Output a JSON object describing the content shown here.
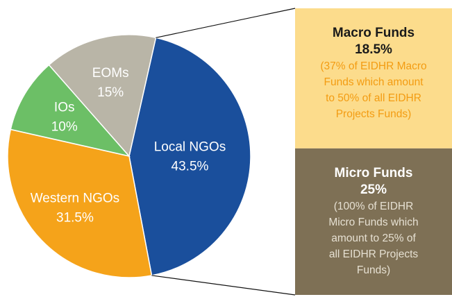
{
  "chart_data": {
    "type": "pie",
    "categories": [
      "Local NGOs",
      "Western NGOs",
      "IOs",
      "EOMs"
    ],
    "values": [
      43.5,
      31.5,
      10,
      15
    ],
    "value_labels": [
      "43.5%",
      "31.5%",
      "10%",
      "15%"
    ],
    "colors": [
      "#1a4f9c",
      "#f5a31a",
      "#6cbf66",
      "#b9b5a7"
    ],
    "label_colors": [
      "#ffffff",
      "#ffffff",
      "#ffffff",
      "#ffffff"
    ],
    "breakdown": {
      "of": "Local NGOs",
      "parts": [
        {
          "name": "Macro Funds",
          "value": 18.5,
          "value_label": "18.5%",
          "color": "#fcdc8c",
          "text_color": "#1a1a1a",
          "note_color": "#f39c12",
          "note_lines": [
            "(37% of EIDHR Macro",
            "Funds which amount",
            "to 50% of all EIDHR",
            "Projects Funds)"
          ]
        },
        {
          "name": "Micro Funds",
          "value": 25,
          "value_label": "25%",
          "color": "#7e7055",
          "text_color": "#ffffff",
          "note_color": "#e6e0d2",
          "note_lines": [
            "(100% of EIDHR",
            "Micro Funds which",
            "amount to 25% of",
            "all EIDHR Projects",
            "Funds)"
          ]
        }
      ]
    }
  }
}
